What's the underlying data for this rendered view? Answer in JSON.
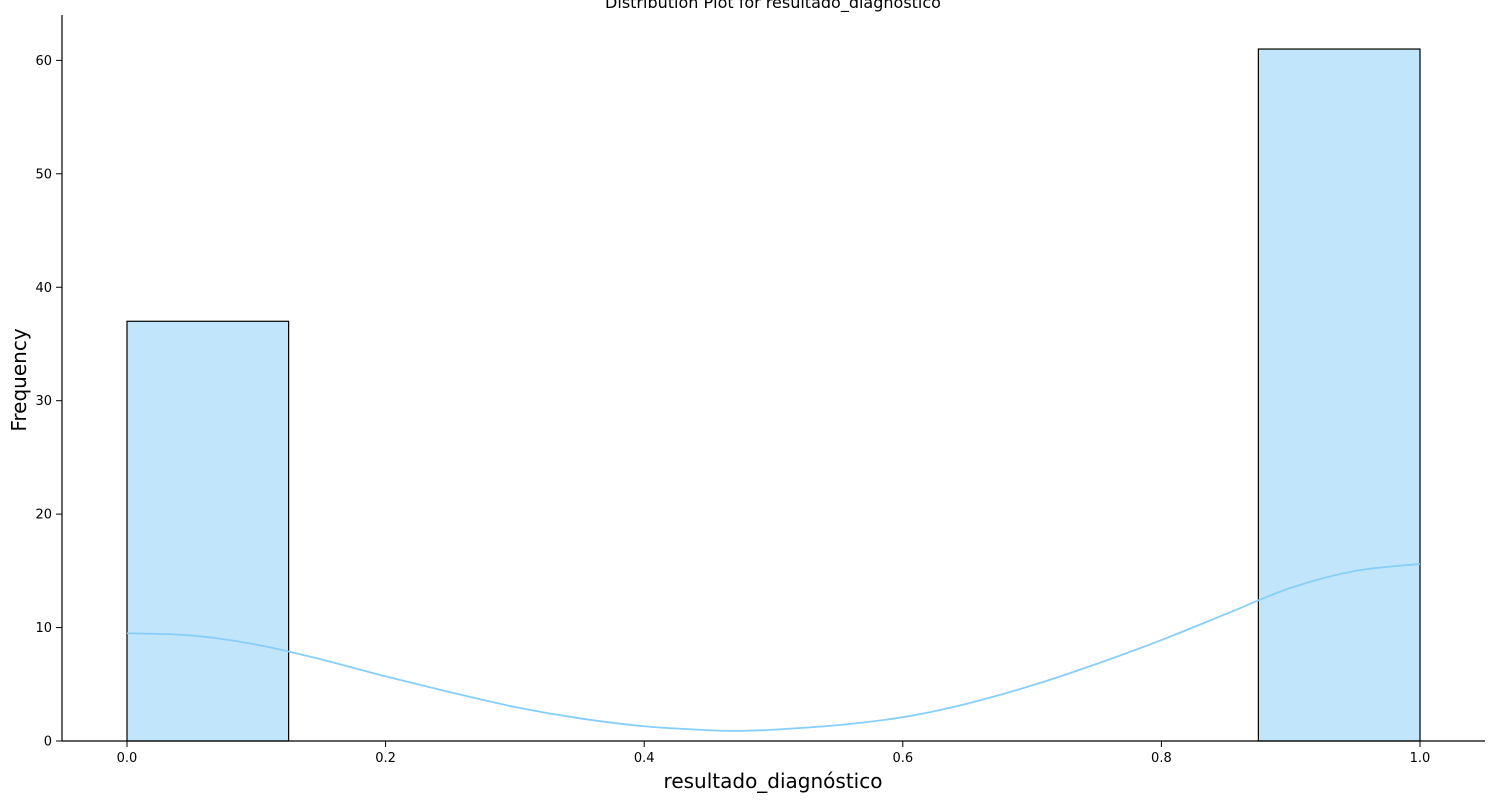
{
  "chart_data": {
    "type": "bar",
    "title": "Distribution Plot for resultado_diagnóstico",
    "xlabel": "resultado_diagnóstico",
    "ylabel": "Frequency",
    "xlim": [
      -0.05,
      1.05
    ],
    "ylim": [
      0,
      64
    ],
    "x_ticks": [
      0.0,
      0.2,
      0.4,
      0.6,
      0.8,
      1.0
    ],
    "x_tick_labels": [
      "0.0",
      "0.2",
      "0.4",
      "0.6",
      "0.8",
      "1.0"
    ],
    "y_ticks": [
      0,
      10,
      20,
      30,
      40,
      50,
      60
    ],
    "y_tick_labels": [
      "0",
      "10",
      "20",
      "30",
      "40",
      "50",
      "60"
    ],
    "bins": [
      {
        "x0": 0.0,
        "x1": 0.125,
        "count": 37
      },
      {
        "x0": 0.125,
        "x1": 0.25,
        "count": 0
      },
      {
        "x0": 0.25,
        "x1": 0.375,
        "count": 0
      },
      {
        "x0": 0.375,
        "x1": 0.5,
        "count": 0
      },
      {
        "x0": 0.5,
        "x1": 0.625,
        "count": 0
      },
      {
        "x0": 0.625,
        "x1": 0.75,
        "count": 0
      },
      {
        "x0": 0.75,
        "x1": 0.875,
        "count": 0
      },
      {
        "x0": 0.875,
        "x1": 1.0,
        "count": 61
      }
    ],
    "kde": {
      "x": [
        0.0,
        0.05,
        0.1,
        0.15,
        0.2,
        0.25,
        0.3,
        0.35,
        0.4,
        0.45,
        0.475,
        0.5,
        0.55,
        0.6,
        0.65,
        0.7,
        0.75,
        0.8,
        0.85,
        0.9,
        0.95,
        1.0
      ],
      "y": [
        9.5,
        9.3,
        8.5,
        7.2,
        5.7,
        4.3,
        3.0,
        2.0,
        1.3,
        0.95,
        0.9,
        1.0,
        1.4,
        2.1,
        3.3,
        4.9,
        6.8,
        8.9,
        11.2,
        13.5,
        15.0,
        15.6
      ]
    },
    "colors": {
      "bar_fill": "#c1e5fa",
      "bar_edge": "#000000",
      "kde_line": "#87cefa",
      "axis": "#000000"
    },
    "grid": false,
    "spines": "left-bottom"
  }
}
